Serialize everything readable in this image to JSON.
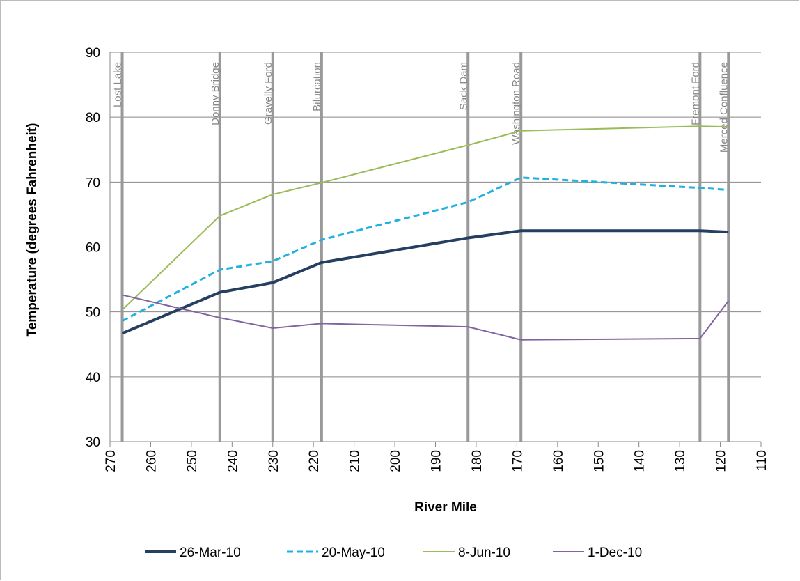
{
  "chart_data": {
    "type": "line",
    "x_label": "River Mile",
    "y_label": "Temperature (degrees Fahrenheit)",
    "sites": [
      "Lost Lake",
      "Donny Bridge",
      "Gravelly Ford",
      "Bifurcation",
      "Sack Dam",
      "Washington Road",
      "Fremont Ford",
      "Merced Confluence"
    ],
    "x": [
      267,
      243,
      230,
      218,
      182,
      169,
      125,
      118
    ],
    "series": [
      {
        "name": "26-Mar-10",
        "color": "#243f60",
        "dash": false,
        "values": [
          46.7,
          53,
          54.5,
          57.6,
          61.4,
          62.5,
          62.5,
          62.3
        ]
      },
      {
        "name": "20-May-10",
        "color": "#1fb1e0",
        "dash": true,
        "values": [
          48.6,
          56.5,
          57.8,
          61.1,
          66.9,
          70.7,
          69.1,
          68.8
        ]
      },
      {
        "name": "8-Jun-10",
        "color": "#9bbb59",
        "dash": false,
        "values": [
          50.3,
          64.8,
          68.1,
          69.9,
          75.7,
          77.9,
          78.6,
          78.5
        ]
      },
      {
        "name": "1-Dec-10",
        "color": "#8064a2",
        "dash": false,
        "values": [
          52.6,
          49.1,
          47.5,
          48.2,
          47.7,
          45.7,
          45.9,
          51.7
        ]
      }
    ],
    "xlim": [
      270,
      110
    ],
    "xticks": [
      270,
      260,
      250,
      240,
      230,
      220,
      210,
      200,
      190,
      180,
      170,
      160,
      150,
      140,
      130,
      120,
      110
    ],
    "ylim": [
      30,
      90
    ],
    "yticks": [
      30,
      40,
      50,
      60,
      70,
      80,
      90
    ],
    "grid": true,
    "legend": "bottom"
  }
}
